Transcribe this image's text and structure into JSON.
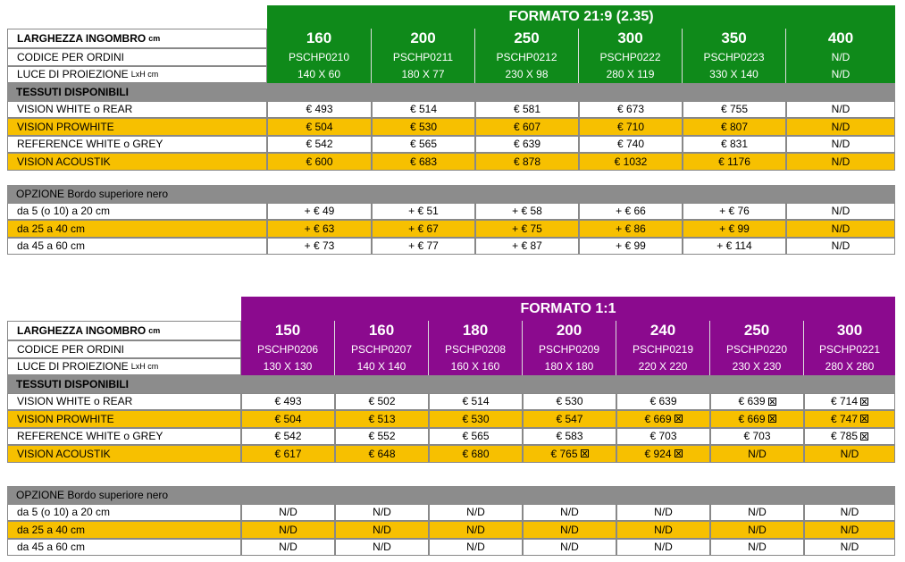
{
  "colors": {
    "green": "#0f8a1a",
    "purple": "#8b0a8e",
    "yellow": "#f7c000",
    "gray": "#8c8c8c"
  },
  "labels": {
    "width": "LARGHEZZA INGOMBRO",
    "width_unit": "cm",
    "code": "CODICE PER ORDINI",
    "light": "LUCE DI PROIEZIONE",
    "light_unit": "LxH cm",
    "fabrics": "TESSUTI DISPONIBILI",
    "option": "OPZIONE Bordo superiore nero"
  },
  "table1": {
    "title": "FORMATO 21:9 (2.35)",
    "sizes": [
      "160",
      "200",
      "250",
      "300",
      "350",
      "400"
    ],
    "codes": [
      "PSCHP0210",
      "PSCHP0211",
      "PSCHP0212",
      "PSCHP0222",
      "PSCHP0223",
      "N/D"
    ],
    "dims": [
      "140 X 60",
      "180 X 77",
      "230 X 98",
      "280 X 119",
      "330 X 140",
      "N/D"
    ],
    "fabrics": [
      {
        "name": "VISION WHITE o REAR",
        "values": [
          "€ 493",
          "€ 514",
          "€ 581",
          "€ 673",
          "€ 755",
          "N/D"
        ]
      },
      {
        "name": "VISION PROWHITE",
        "values": [
          "€ 504",
          "€ 530",
          "€ 607",
          "€ 710",
          "€ 807",
          "N/D"
        ]
      },
      {
        "name": "REFERENCE WHITE o GREY",
        "values": [
          "€ 542",
          "€ 565",
          "€ 639",
          "€ 740",
          "€ 831",
          "N/D"
        ]
      },
      {
        "name": "VISION ACOUSTIK",
        "values": [
          "€ 600",
          "€ 683",
          "€ 878",
          "€ 1032",
          "€ 1176",
          "N/D"
        ]
      }
    ],
    "options": [
      {
        "name": "da 5 (o 10) a 20 cm",
        "values": [
          "+ € 49",
          "+ € 51",
          "+ € 58",
          "+ € 66",
          "+ € 76",
          "N/D"
        ]
      },
      {
        "name": "da 25 a 40 cm",
        "values": [
          "+ € 63",
          "+ € 67",
          "+ € 75",
          "+ € 86",
          "+ € 99",
          "N/D"
        ]
      },
      {
        "name": "da 45 a 60 cm",
        "values": [
          "+ € 73",
          "+ € 77",
          "+ € 87",
          "+ € 99",
          "+ € 114",
          "N/D"
        ]
      }
    ]
  },
  "table2": {
    "title": "FORMATO 1:1",
    "sizes": [
      "150",
      "160",
      "180",
      "200",
      "240",
      "250",
      "300"
    ],
    "codes": [
      "PSCHP0206",
      "PSCHP0207",
      "PSCHP0208",
      "PSCHP0209",
      "PSCHP0219",
      "PSCHP0220",
      "PSCHP0221"
    ],
    "dims": [
      "130 X 130",
      "140 X 140",
      "160 X 160",
      "180 X 180",
      "220 X 220",
      "230 X 230",
      "280 X 280"
    ],
    "fabrics": [
      {
        "name": "VISION WHITE o REAR",
        "values": [
          "€ 493",
          "€ 502",
          "€ 514",
          "€ 530",
          "€ 639",
          "€ 639",
          "€ 714"
        ],
        "marks": [
          false,
          false,
          false,
          false,
          false,
          true,
          true
        ]
      },
      {
        "name": "VISION PROWHITE",
        "values": [
          "€ 504",
          "€ 513",
          "€ 530",
          "€ 547",
          "€ 669",
          "€ 669",
          "€ 747"
        ],
        "marks": [
          false,
          false,
          false,
          false,
          true,
          true,
          true
        ]
      },
      {
        "name": "REFERENCE WHITE o GREY",
        "values": [
          "€ 542",
          "€ 552",
          "€ 565",
          "€ 583",
          "€ 703",
          "€ 703",
          "€ 785"
        ],
        "marks": [
          false,
          false,
          false,
          false,
          false,
          false,
          true
        ]
      },
      {
        "name": "VISION ACOUSTIK",
        "values": [
          "€ 617",
          "€ 648",
          "€ 680",
          "€ 765",
          "€ 924",
          "N/D",
          "N/D"
        ],
        "marks": [
          false,
          false,
          false,
          true,
          true,
          false,
          false
        ]
      }
    ],
    "options": [
      {
        "name": "da 5 (o 10) a 20 cm",
        "values": [
          "N/D",
          "N/D",
          "N/D",
          "N/D",
          "N/D",
          "N/D",
          "N/D"
        ]
      },
      {
        "name": "da 25 a 40 cm",
        "values": [
          "N/D",
          "N/D",
          "N/D",
          "N/D",
          "N/D",
          "N/D",
          "N/D"
        ]
      },
      {
        "name": "da 45 a 60 cm",
        "values": [
          "N/D",
          "N/D",
          "N/D",
          "N/D",
          "N/D",
          "N/D",
          "N/D"
        ]
      }
    ]
  }
}
